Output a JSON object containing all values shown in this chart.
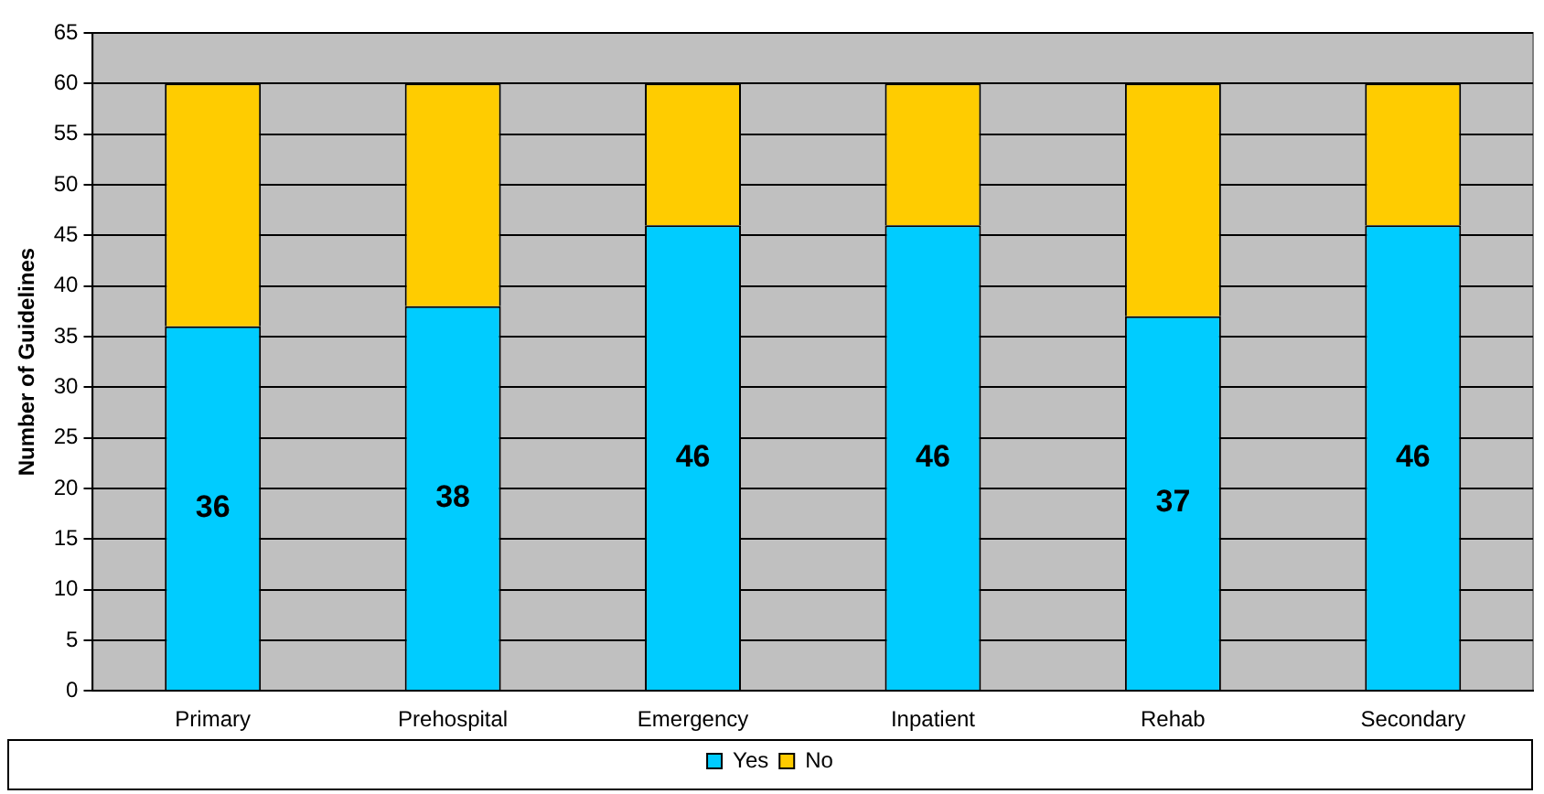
{
  "chart_data": {
    "type": "bar",
    "stacked": true,
    "ylabel": "Number of Guidelines",
    "categories": [
      "Primary",
      "Prehospital",
      "Emergency",
      "Inpatient",
      "Rehab",
      "Secondary"
    ],
    "series": [
      {
        "name": "Yes",
        "color": "#00ccff",
        "values": [
          36,
          38,
          46,
          46,
          37,
          46
        ],
        "value_labels": [
          "36",
          "38",
          "46",
          "46",
          "37",
          "46"
        ]
      },
      {
        "name": "No",
        "color": "#ffcc00",
        "values": [
          24,
          22,
          14,
          14,
          23,
          14
        ]
      }
    ],
    "ylim": [
      0,
      65
    ],
    "yticks": [
      0,
      5,
      10,
      15,
      20,
      25,
      30,
      35,
      40,
      45,
      50,
      55,
      60,
      65
    ],
    "grid": "y",
    "legend": "bottom"
  }
}
